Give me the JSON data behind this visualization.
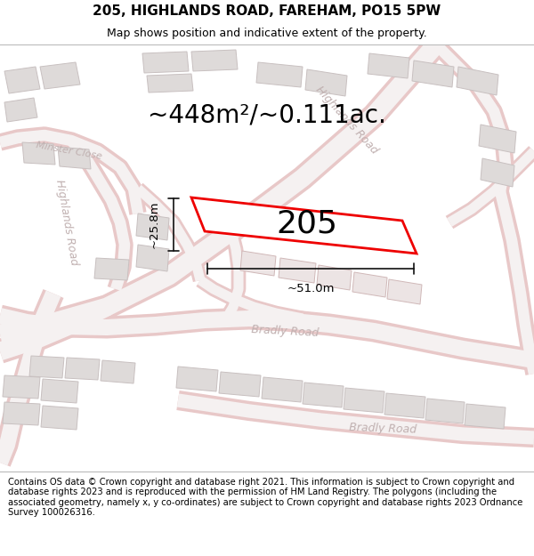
{
  "title_line1": "205, HIGHLANDS ROAD, FAREHAM, PO15 5PW",
  "title_line2": "Map shows position and indicative extent of the property.",
  "area_text": "~448m²/~0.111ac.",
  "number_label": "205",
  "width_label": "~51.0m",
  "height_label": "~25.8m",
  "footer_text": "Contains OS data © Crown copyright and database right 2021. This information is subject to Crown copyright and database rights 2023 and is reproduced with the permission of HM Land Registry. The polygons (including the associated geometry, namely x, y co-ordinates) are subject to Crown copyright and database rights 2023 Ordnance Survey 100026316.",
  "bg_color": "#ffffff",
  "map_bg": "#f0eeed",
  "road_fill": "#f5f1f1",
  "road_edge": "#e8c8c8",
  "building_fill": "#dedad9",
  "building_edge": "#c8c0c0",
  "property_fill": "#ffffff",
  "property_edge": "#ee0000",
  "dim_color": "#111111",
  "road_label_color": "#c0b0b0",
  "title_fontsize": 11,
  "subtitle_fontsize": 9,
  "area_fontsize": 20,
  "number_fontsize": 26,
  "dim_fontsize": 9.5,
  "footer_fontsize": 7.2
}
